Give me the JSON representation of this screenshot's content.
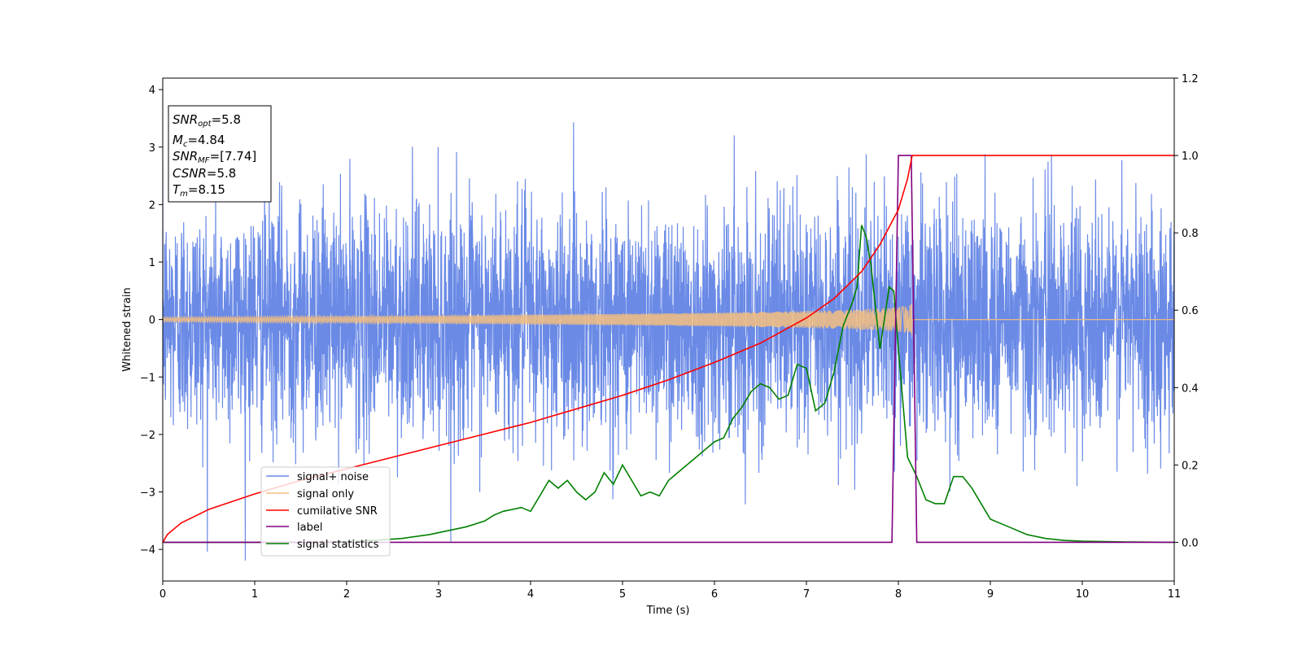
{
  "chart_data": {
    "type": "line",
    "xlabel": "Time (s)",
    "ylabel": "Whitened strain",
    "xlim": [
      0,
      11
    ],
    "ylim": [
      -4.55,
      4.2
    ],
    "y2lim": [
      -0.1,
      1.2
    ],
    "xticks": [
      "0",
      "1",
      "2",
      "3",
      "4",
      "5",
      "6",
      "7",
      "8",
      "9",
      "10",
      "11"
    ],
    "yticks": [
      "−4",
      "−3",
      "−2",
      "−1",
      "0",
      "1",
      "2",
      "3",
      "4"
    ],
    "y2ticks": [
      "0.0",
      "0.2",
      "0.4",
      "0.6",
      "0.8",
      "1.0",
      "1.2"
    ],
    "grid": false,
    "legend_position": "lower-left",
    "info_box": {
      "snr_opt": {
        "symbol": "SNR",
        "sub": "opt",
        "value": "=5.8"
      },
      "mc": {
        "symbol": "M",
        "sub": "c",
        "value": "=4.84"
      },
      "snr_mf": {
        "symbol": "SNR",
        "sub": "MF",
        "value": "=[7.74]"
      },
      "csnr": {
        "symbol": "CSNR",
        "value": "=5.8"
      },
      "tm": {
        "symbol": "T",
        "sub": "m",
        "value": "=8.15"
      }
    },
    "series": [
      {
        "name": "signal+ noise",
        "color": "#6a8ae6",
        "axis": "left",
        "description_only": false,
        "noise_envelope": {
          "sigma": 1.0,
          "range": [
            -4.2,
            3.8
          ]
        },
        "x_range": [
          0,
          11
        ]
      },
      {
        "name": "signal only",
        "color": "#f5be7e",
        "axis": "left",
        "chirp": {
          "t_start": 0,
          "t_merge": 8.15,
          "amp_start": 0.04,
          "amp_merge": 0.32
        }
      },
      {
        "name": "cumilative SNR",
        "color": "#ff0000",
        "axis": "right",
        "x": [
          0,
          0.05,
          0.2,
          0.5,
          1,
          1.5,
          2,
          2.5,
          3,
          3.5,
          4,
          4.5,
          5,
          5.5,
          6,
          6.5,
          7,
          7.3,
          7.6,
          7.8,
          8.0,
          8.1,
          8.15,
          11
        ],
        "y": [
          0.0,
          0.02,
          0.05,
          0.085,
          0.125,
          0.16,
          0.19,
          0.22,
          0.25,
          0.28,
          0.31,
          0.345,
          0.38,
          0.42,
          0.465,
          0.515,
          0.58,
          0.63,
          0.7,
          0.77,
          0.86,
          0.94,
          1.0,
          1.0
        ]
      },
      {
        "name": "label",
        "color": "#800080",
        "axis": "right",
        "x": [
          0,
          7.93,
          8.0,
          8.14,
          8.2,
          11
        ],
        "y": [
          0,
          0,
          1.0,
          1.0,
          0,
          0
        ]
      },
      {
        "name": "signal statistics",
        "color": "#008000",
        "axis": "right",
        "x": [
          0,
          0.5,
          1,
          1.5,
          2,
          2.3,
          2.6,
          2.9,
          3.1,
          3.3,
          3.5,
          3.6,
          3.7,
          3.9,
          4.0,
          4.1,
          4.2,
          4.3,
          4.4,
          4.5,
          4.6,
          4.7,
          4.8,
          4.9,
          5.0,
          5.1,
          5.2,
          5.3,
          5.4,
          5.5,
          5.6,
          5.7,
          5.8,
          5.9,
          6.0,
          6.1,
          6.2,
          6.3,
          6.4,
          6.5,
          6.6,
          6.7,
          6.8,
          6.9,
          7.0,
          7.1,
          7.2,
          7.3,
          7.4,
          7.5,
          7.55,
          7.6,
          7.65,
          7.7,
          7.8,
          7.9,
          7.95,
          8.0,
          8.1,
          8.2,
          8.3,
          8.4,
          8.5,
          8.6,
          8.7,
          8.8,
          8.9,
          9.0,
          9.2,
          9.4,
          9.6,
          9.8,
          10.0,
          10.5,
          11
        ],
        "y": [
          0.0,
          0.0,
          0.0,
          0.0,
          0.002,
          0.005,
          0.01,
          0.02,
          0.03,
          0.04,
          0.055,
          0.07,
          0.08,
          0.09,
          0.08,
          0.12,
          0.16,
          0.14,
          0.16,
          0.13,
          0.11,
          0.13,
          0.18,
          0.15,
          0.2,
          0.16,
          0.12,
          0.13,
          0.12,
          0.16,
          0.18,
          0.2,
          0.22,
          0.24,
          0.26,
          0.27,
          0.32,
          0.35,
          0.39,
          0.41,
          0.4,
          0.37,
          0.38,
          0.46,
          0.45,
          0.34,
          0.36,
          0.44,
          0.56,
          0.62,
          0.66,
          0.82,
          0.79,
          0.72,
          0.5,
          0.66,
          0.65,
          0.5,
          0.22,
          0.17,
          0.11,
          0.1,
          0.1,
          0.17,
          0.17,
          0.14,
          0.1,
          0.06,
          0.04,
          0.02,
          0.01,
          0.005,
          0.003,
          0.001,
          0.0
        ]
      }
    ]
  }
}
